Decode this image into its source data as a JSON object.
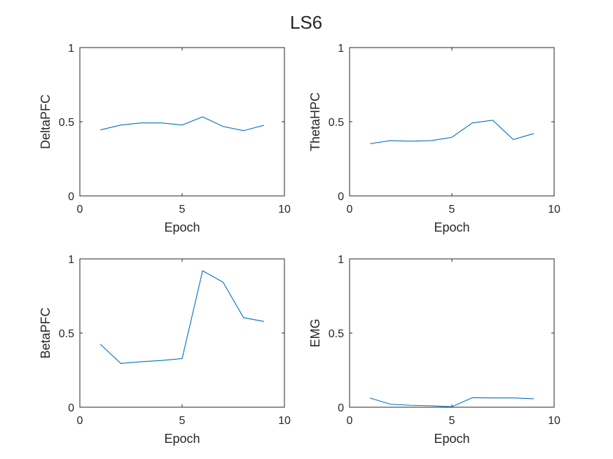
{
  "figure": {
    "title": "LS6"
  },
  "colors": {
    "series": "#0072BD",
    "axes": "#262626",
    "background": "#ffffff"
  },
  "chart_data": [
    {
      "type": "line",
      "title": "",
      "xlabel": "Epoch",
      "ylabel": "DeltaPFC",
      "xlim": [
        0,
        10
      ],
      "ylim": [
        0,
        1
      ],
      "xticks": [
        0,
        5,
        10
      ],
      "yticks": [
        0,
        0.5,
        1
      ],
      "x": [
        1,
        2,
        3,
        4,
        5,
        6,
        7,
        8,
        9
      ],
      "series": [
        {
          "values": [
            0.445,
            0.478,
            0.492,
            0.492,
            0.478,
            0.533,
            0.468,
            0.44,
            0.476
          ]
        }
      ],
      "grid": false
    },
    {
      "type": "line",
      "title": "",
      "xlabel": "Epoch",
      "ylabel": "ThetaHPC",
      "xlim": [
        0,
        10
      ],
      "ylim": [
        0,
        1
      ],
      "xticks": [
        0,
        5,
        10
      ],
      "yticks": [
        0,
        0.5,
        1
      ],
      "x": [
        1,
        2,
        3,
        4,
        5,
        6,
        7,
        8,
        9
      ],
      "series": [
        {
          "values": [
            0.352,
            0.373,
            0.369,
            0.373,
            0.395,
            0.492,
            0.51,
            0.38,
            0.42
          ]
        }
      ],
      "grid": false
    },
    {
      "type": "line",
      "title": "",
      "xlabel": "Epoch",
      "ylabel": "BetaPFC",
      "xlim": [
        0,
        10
      ],
      "ylim": [
        0,
        1
      ],
      "xticks": [
        0,
        5,
        10
      ],
      "yticks": [
        0,
        0.5,
        1
      ],
      "x": [
        1,
        2,
        3,
        4,
        5,
        6,
        7,
        8,
        9
      ],
      "series": [
        {
          "values": [
            0.425,
            0.295,
            0.307,
            0.315,
            0.328,
            0.92,
            0.843,
            0.604,
            0.578
          ]
        }
      ],
      "grid": false
    },
    {
      "type": "line",
      "title": "",
      "xlabel": "Epoch",
      "ylabel": "EMG",
      "xlim": [
        0,
        10
      ],
      "ylim": [
        0,
        1
      ],
      "xticks": [
        0,
        5,
        10
      ],
      "yticks": [
        0,
        0.5,
        1
      ],
      "x": [
        1,
        2,
        3,
        4,
        5,
        6,
        7,
        8,
        9
      ],
      "series": [
        {
          "values": [
            0.062,
            0.02,
            0.013,
            0.01,
            0.003,
            0.064,
            0.063,
            0.063,
            0.057
          ]
        }
      ],
      "grid": false
    }
  ]
}
